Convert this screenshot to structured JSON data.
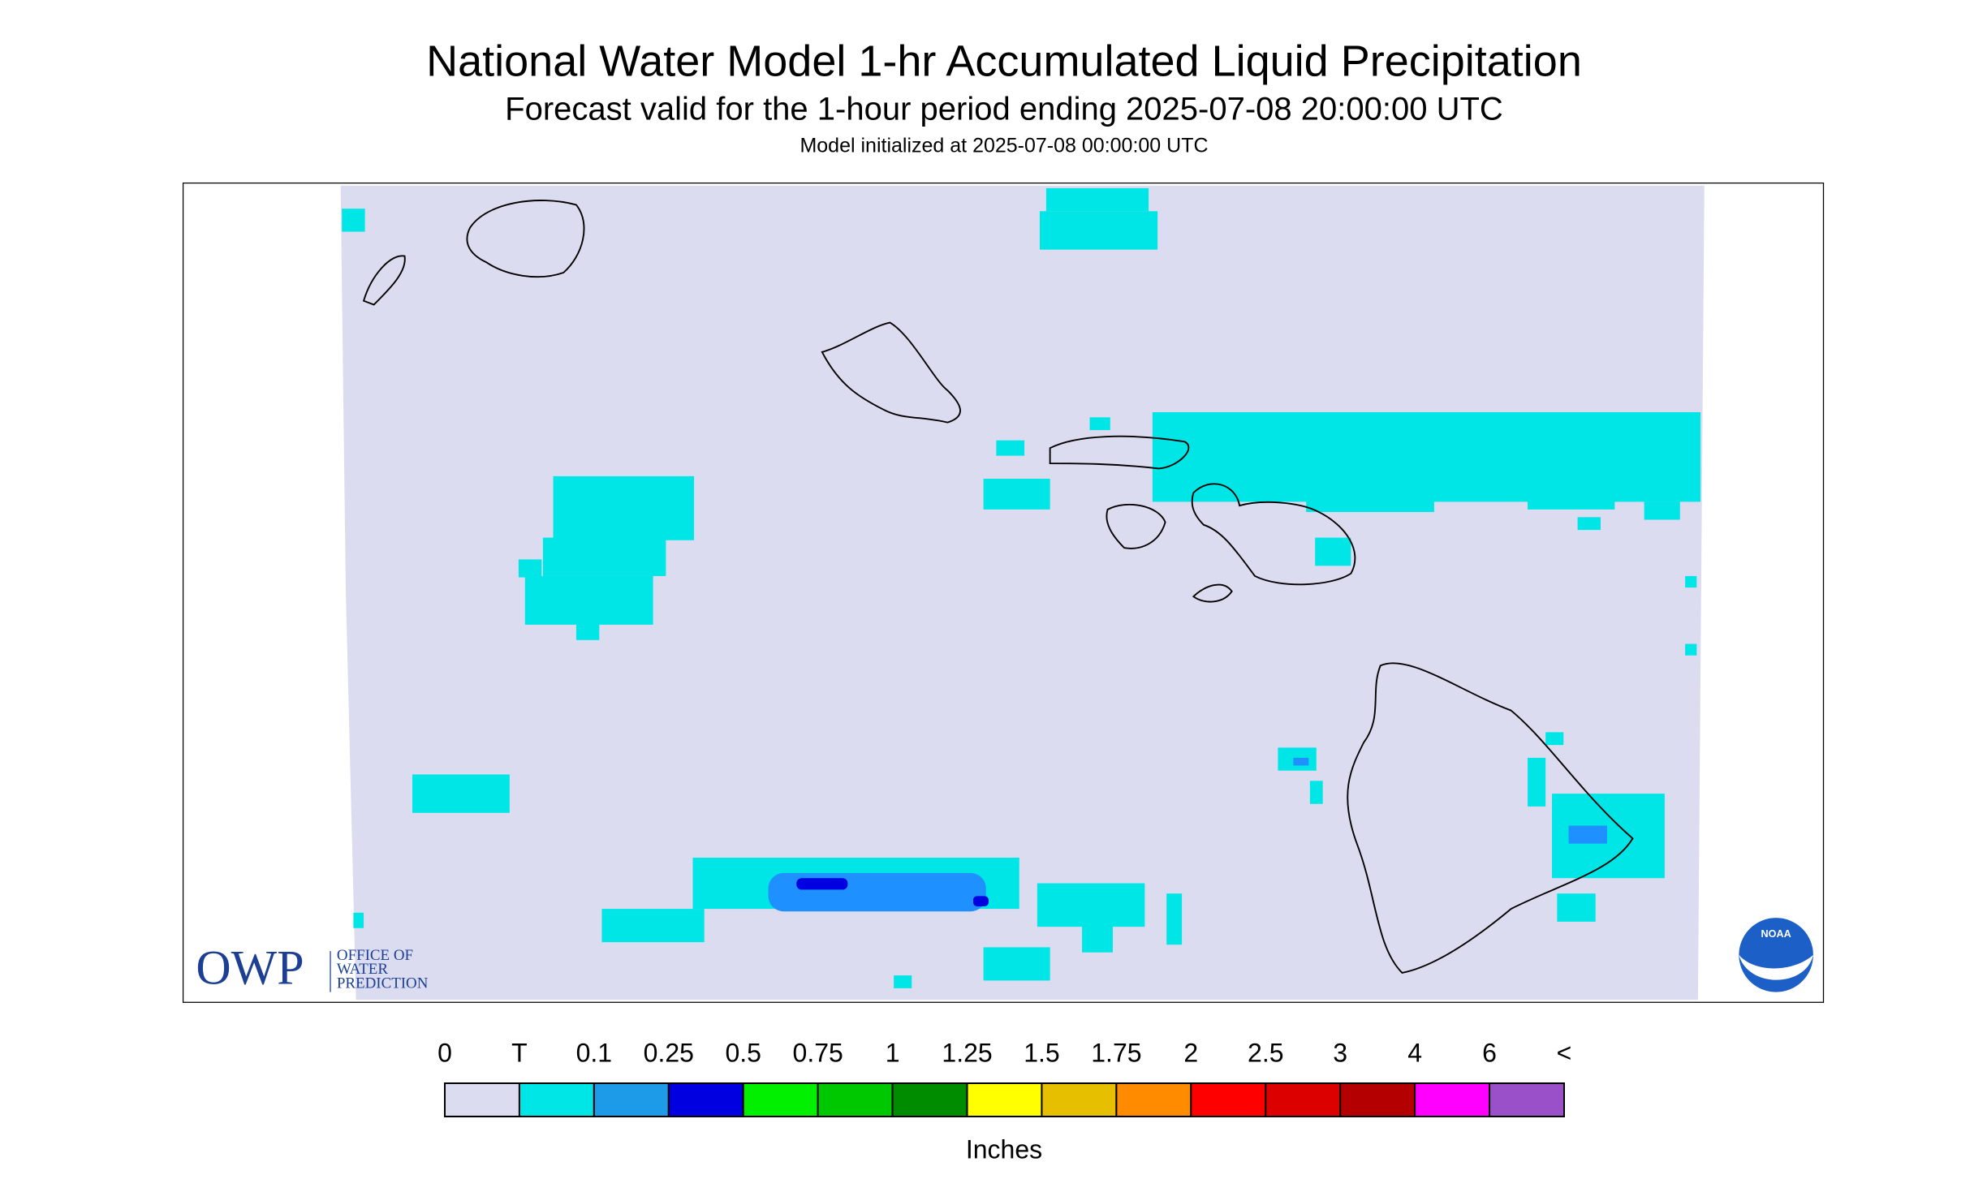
{
  "header": {
    "title": "National Water Model 1-hr Accumulated Liquid Precipitation",
    "subtitle": "Forecast valid for the 1-hour period ending 2025-07-08 20:00:00 UTC",
    "initialized": "Model initialized at 2025-07-08 00:00:00 UTC"
  },
  "legend": {
    "labels": [
      "0",
      "T",
      "0.1",
      "0.25",
      "0.5",
      "0.75",
      "1",
      "1.25",
      "1.5",
      "1.75",
      "2",
      "2.5",
      "3",
      "4",
      "6",
      "<"
    ],
    "colors": [
      "#dcdcf0",
      "#00e5e5",
      "#1e9be8",
      "#0000e0",
      "#00f000",
      "#00c800",
      "#008c00",
      "#ffff00",
      "#e6c000",
      "#ff8c00",
      "#ff0000",
      "#dc0000",
      "#b40000",
      "#ff00ff",
      "#9a50c8"
    ],
    "unit": "Inches"
  },
  "logos": {
    "owp": "OWP",
    "owp_lines": [
      "OFFICE OF",
      "WATER",
      "PREDICTION"
    ],
    "noaa": "NOAA"
  }
}
